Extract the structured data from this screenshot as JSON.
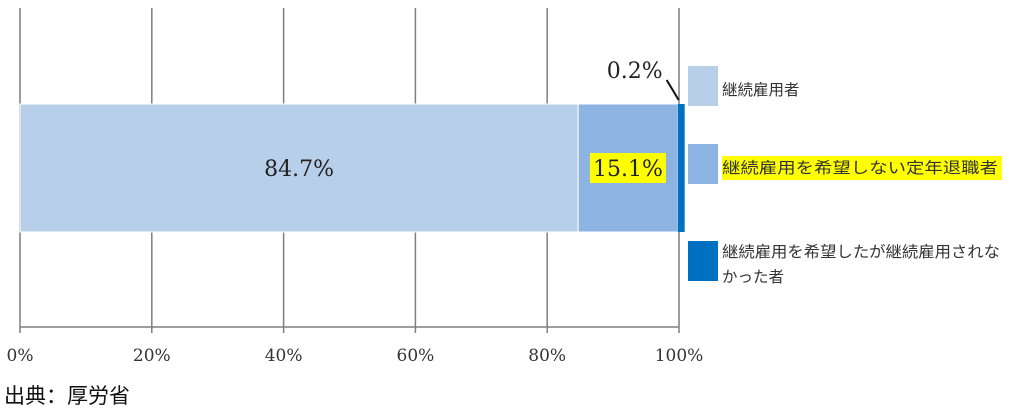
{
  "chart_data": {
    "type": "bar",
    "orientation": "horizontal",
    "stacked": true,
    "xlim": [
      0,
      100
    ],
    "x_ticks": [
      "0%",
      "20%",
      "40%",
      "60%",
      "80%",
      "100%"
    ],
    "grid": true,
    "legend_position": "right",
    "series": [
      {
        "name": "継続雇用者",
        "value": 84.7,
        "label": "84.7%",
        "color": "#b8cfea"
      },
      {
        "name": "継続雇用を希望しない定年退職者",
        "value": 15.1,
        "label": "15.1%",
        "color": "#8db3e2",
        "highlight": "#ffff00"
      },
      {
        "name": "継続雇用を希望したが継続雇用されなかった者",
        "value": 0.2,
        "label": "0.2%",
        "color": "#0070c0"
      }
    ]
  },
  "source": "出典：厚労省"
}
